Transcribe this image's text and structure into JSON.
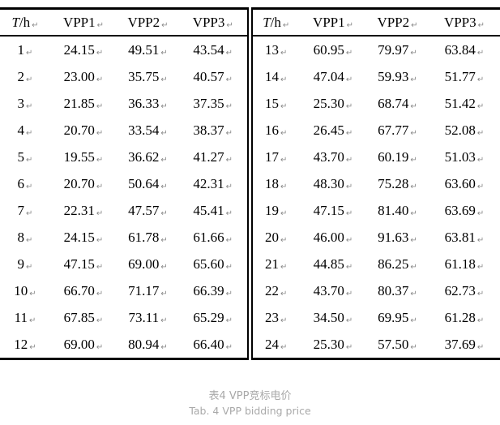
{
  "marks": {
    "return": "↵"
  },
  "colors": {
    "text": "#000000",
    "rule": "#000000",
    "return_mark": "#8a8a8a",
    "caption": "#a9a9a9"
  },
  "table": {
    "hour_header": {
      "italic": "T",
      "rest": "/h"
    },
    "col_headers": [
      "VPP1",
      "VPP2",
      "VPP3"
    ],
    "left_rows": [
      [
        "1",
        "24.15",
        "49.51",
        "43.54"
      ],
      [
        "2",
        "23.00",
        "35.75",
        "40.57"
      ],
      [
        "3",
        "21.85",
        "36.33",
        "37.35"
      ],
      [
        "4",
        "20.70",
        "33.54",
        "38.37"
      ],
      [
        "5",
        "19.55",
        "36.62",
        "41.27"
      ],
      [
        "6",
        "20.70",
        "50.64",
        "42.31"
      ],
      [
        "7",
        "22.31",
        "47.57",
        "45.41"
      ],
      [
        "8",
        "24.15",
        "61.78",
        "61.66"
      ],
      [
        "9",
        "47.15",
        "69.00",
        "65.60"
      ],
      [
        "10",
        "66.70",
        "71.17",
        "66.39"
      ],
      [
        "11",
        "67.85",
        "73.11",
        "65.29"
      ],
      [
        "12",
        "69.00",
        "80.94",
        "66.40"
      ]
    ],
    "right_rows": [
      [
        "13",
        "60.95",
        "79.97",
        "63.84"
      ],
      [
        "14",
        "47.04",
        "59.93",
        "51.77"
      ],
      [
        "15",
        "25.30",
        "68.74",
        "51.42"
      ],
      [
        "16",
        "26.45",
        "67.77",
        "52.08"
      ],
      [
        "17",
        "43.70",
        "60.19",
        "51.03"
      ],
      [
        "18",
        "48.30",
        "75.28",
        "63.60"
      ],
      [
        "19",
        "47.15",
        "81.40",
        "63.69"
      ],
      [
        "20",
        "46.00",
        "91.63",
        "63.81"
      ],
      [
        "21",
        "44.85",
        "86.25",
        "61.18"
      ],
      [
        "22",
        "43.70",
        "80.37",
        "62.73"
      ],
      [
        "23",
        "34.50",
        "69.95",
        "61.28"
      ],
      [
        "24",
        "25.30",
        "57.50",
        "37.69"
      ]
    ]
  },
  "caption": {
    "zh": "表4 VPP竞标电价",
    "en": "Tab. 4 VPP bidding price"
  }
}
